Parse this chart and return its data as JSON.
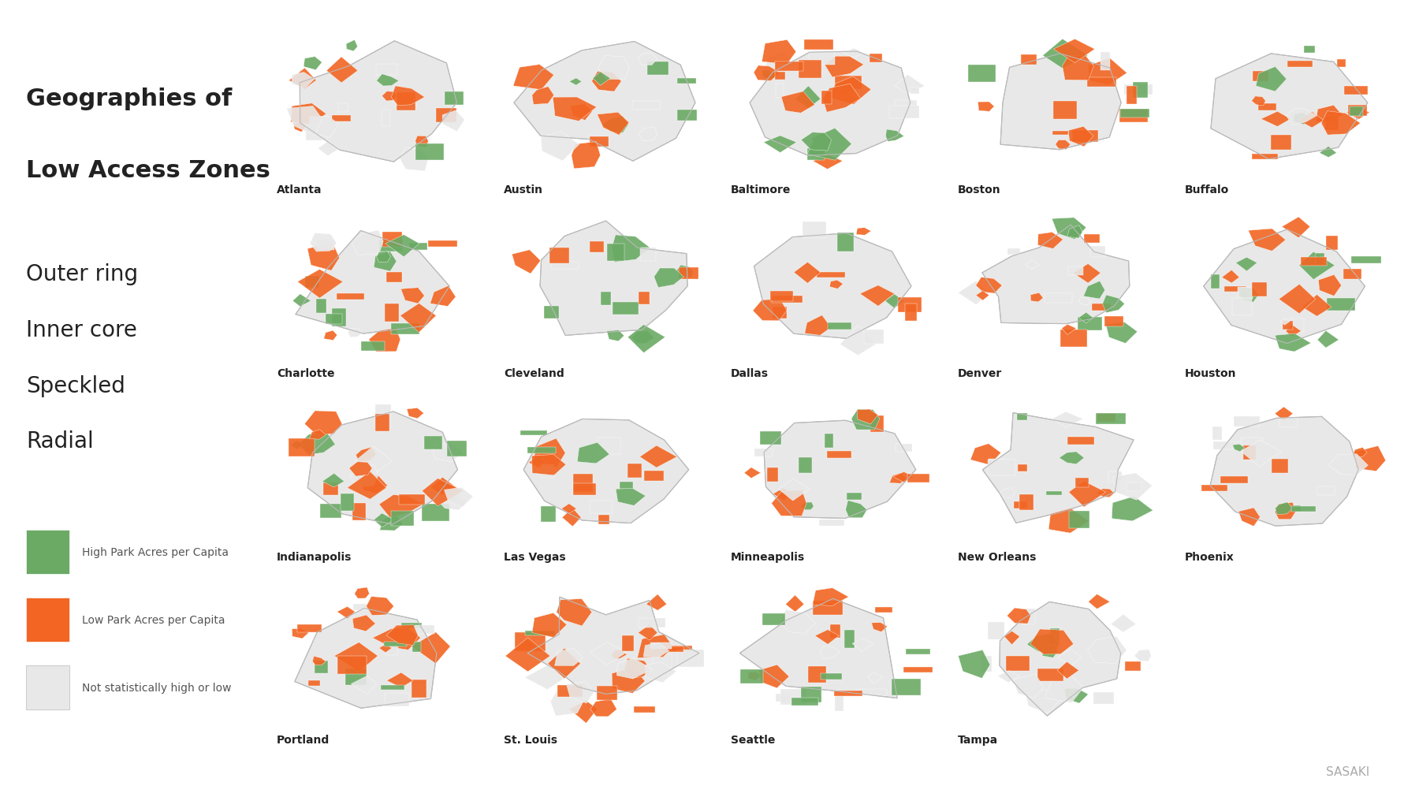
{
  "title_line1": "Geographies of",
  "title_line2": "Low Access Zones",
  "categories": [
    "Outer ring",
    "Inner core",
    "Speckled",
    "Radial"
  ],
  "legend_items": [
    {
      "label": "High Park Acres per Capita",
      "color": "#6aaa64"
    },
    {
      "label": "Low Park Acres per Capita",
      "color": "#f26522"
    },
    {
      "label": "Not statistically high or low",
      "color": "#e8e8e8"
    }
  ],
  "cities": [
    "Atlanta",
    "Austin",
    "Baltimore",
    "Boston",
    "Buffalo",
    "Charlotte",
    "Cleveland",
    "Dallas",
    "Denver",
    "Houston",
    "Indianapolis",
    "Las Vegas",
    "Minneapolis",
    "New Orleans",
    "Phoenix",
    "Portland",
    "St. Louis",
    "Seattle",
    "Tampa"
  ],
  "sasaki_color": "#aaaaaa",
  "bg_color": "#ffffff",
  "text_color": "#222222",
  "title_fontsize": 22,
  "category_fontsize": 20,
  "city_fontsize": 10,
  "legend_fontsize": 10,
  "green_color": "#6aaa64",
  "orange_color": "#f26522",
  "light_gray": "#e8e8e8",
  "outline_color": "#bbbbbb"
}
